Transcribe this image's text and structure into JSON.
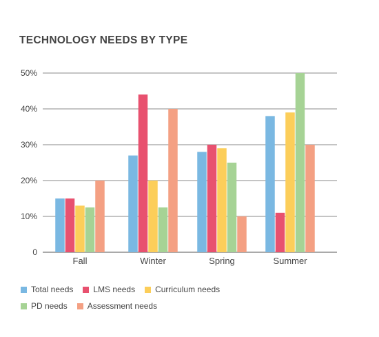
{
  "chart_data": {
    "type": "bar",
    "title": "TECHNOLOGY NEEDS BY TYPE",
    "categories": [
      "Fall",
      "Winter",
      "Spring",
      "Summer"
    ],
    "series": [
      {
        "name": "Total needs",
        "color": "#7ab8e2",
        "values": [
          15,
          27,
          28,
          38
        ]
      },
      {
        "name": "LMS needs",
        "color": "#e8516f",
        "values": [
          15,
          44,
          30,
          11
        ]
      },
      {
        "name": "Curriculum needs",
        "color": "#fcce5a",
        "values": [
          13,
          20,
          29,
          39
        ]
      },
      {
        "name": "PD needs",
        "color": "#a6d395",
        "values": [
          12.5,
          12.5,
          25,
          50
        ]
      },
      {
        "name": "Assessment needs",
        "color": "#f4a083",
        "values": [
          20,
          40,
          10,
          30
        ]
      }
    ],
    "yticks": [
      "0",
      "10%",
      "20%",
      "30%",
      "40%",
      "50%"
    ],
    "ylim": [
      0,
      50
    ],
    "grid": true,
    "legend_position": "bottom"
  }
}
